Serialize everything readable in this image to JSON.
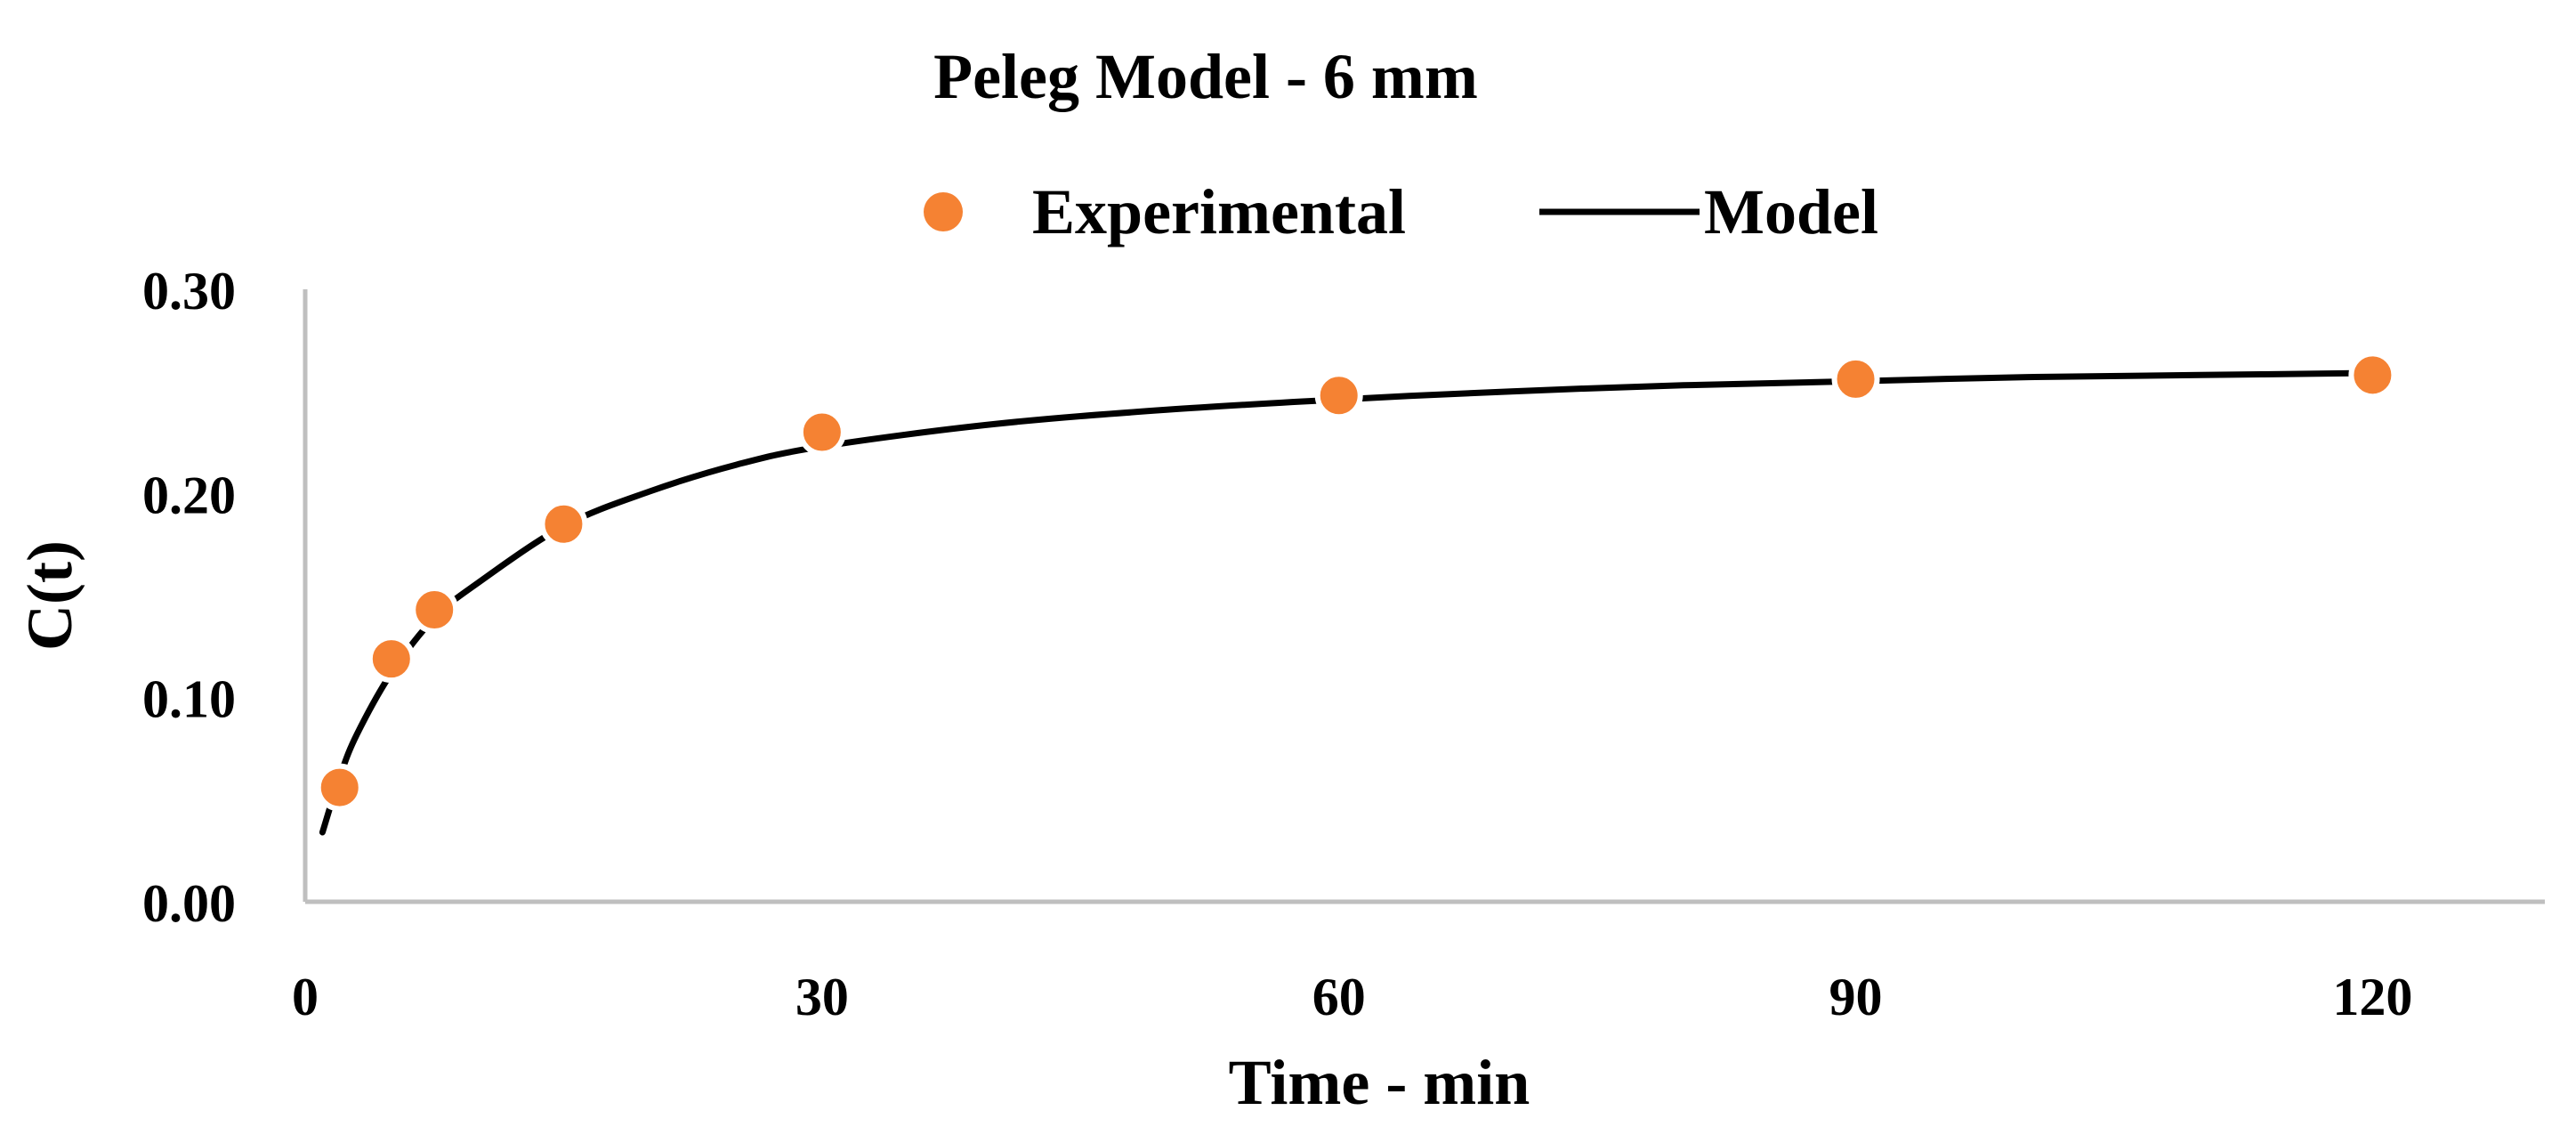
{
  "chart_data": {
    "type": "scatter",
    "title": "Peleg Model - 6 mm",
    "xlabel": "Time - min",
    "ylabel": "C(t)",
    "xlim": [
      0,
      130
    ],
    "ylim": [
      0,
      0.3
    ],
    "x_ticks": [
      0,
      30,
      60,
      90,
      120
    ],
    "y_ticks": [
      0.0,
      0.1,
      0.2,
      0.3
    ],
    "x_tick_labels": [
      "0",
      "30",
      "60",
      "90",
      "120"
    ],
    "y_tick_labels": [
      "0.00",
      "0.10",
      "0.20",
      "0.30"
    ],
    "grid": false,
    "legend_position": "top",
    "series": [
      {
        "name": "Experimental",
        "kind": "markers",
        "color": "#F58233",
        "x": [
          2,
          5,
          7.5,
          15,
          30,
          60,
          90,
          120
        ],
        "y": [
          0.056,
          0.119,
          0.143,
          0.185,
          0.23,
          0.248,
          0.256,
          0.258
        ]
      },
      {
        "name": "Model",
        "kind": "line",
        "color": "#000000",
        "x": [
          1,
          2,
          3,
          5,
          7.5,
          10,
          15,
          20,
          25,
          30,
          40,
          50,
          60,
          70,
          80,
          90,
          100,
          110,
          120
        ],
        "y": [
          0.034,
          0.061,
          0.082,
          0.112,
          0.139,
          0.156,
          0.184,
          0.201,
          0.214,
          0.223,
          0.234,
          0.241,
          0.246,
          0.25,
          0.253,
          0.255,
          0.257,
          0.258,
          0.259
        ]
      }
    ]
  }
}
